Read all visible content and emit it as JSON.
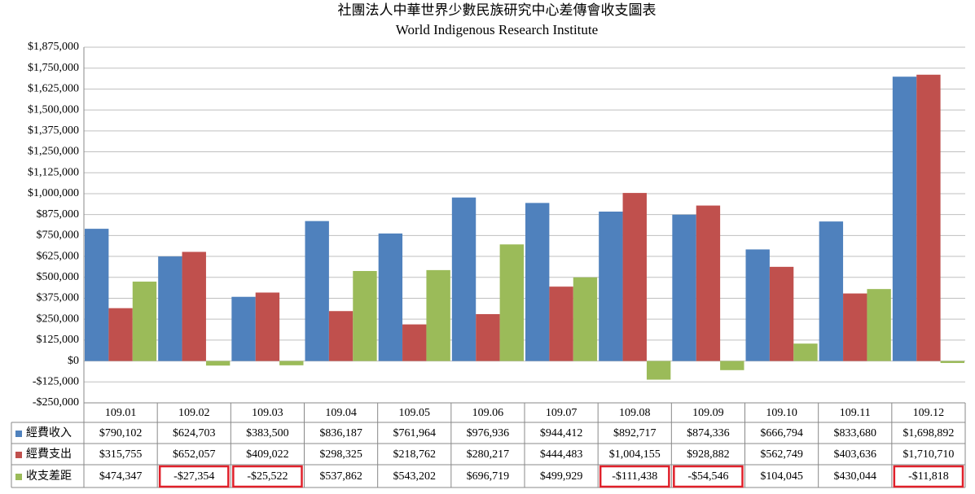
{
  "chart_data": {
    "type": "bar",
    "title": "社團法人中華世界少數民族研究中心差傳會收支圖表",
    "subtitle": "World Indigenous Research Institute",
    "categories": [
      "109.01",
      "109.02",
      "109.03",
      "109.04",
      "109.05",
      "109.06",
      "109.07",
      "109.08",
      "109.09",
      "109.10",
      "109.11",
      "109.12"
    ],
    "series": [
      {
        "name": "經費收入",
        "color": "#4f81bd",
        "values": [
          790102,
          624703,
          383500,
          836187,
          761964,
          976936,
          944412,
          892717,
          874336,
          666794,
          833680,
          1698892
        ],
        "value_labels": [
          "$790,102",
          "$624,703",
          "$383,500",
          "$836,187",
          "$761,964",
          "$976,936",
          "$944,412",
          "$892,717",
          "$874,336",
          "$666,794",
          "$833,680",
          "$1,698,892"
        ]
      },
      {
        "name": "經費支出",
        "color": "#c0504d",
        "values": [
          315755,
          652057,
          409022,
          298325,
          218762,
          280217,
          444483,
          1004155,
          928882,
          562749,
          403636,
          1710710
        ],
        "value_labels": [
          "$315,755",
          "$652,057",
          "$409,022",
          "$298,325",
          "$218,762",
          "$280,217",
          "$444,483",
          "$1,004,155",
          "$928,882",
          "$562,749",
          "$403,636",
          "$1,710,710"
        ]
      },
      {
        "name": "收支差距",
        "color": "#9bbb59",
        "values": [
          474347,
          -27354,
          -25522,
          537862,
          543202,
          696719,
          499929,
          -111438,
          -54546,
          104045,
          430044,
          -11818
        ],
        "value_labels": [
          "$474,347",
          "-$27,354",
          "-$25,522",
          "$537,862",
          "$543,202",
          "$696,719",
          "$499,929",
          "-$111,438",
          "-$54,546",
          "$104,045",
          "$430,044",
          "-$11,818"
        ]
      }
    ],
    "ylim": [
      -250000,
      1875000
    ],
    "yticks": [
      {
        "value": -250000,
        "label": "-$250,000"
      },
      {
        "value": -125000,
        "label": "-$125,000"
      },
      {
        "value": 0,
        "label": "$0"
      },
      {
        "value": 125000,
        "label": "$125,000"
      },
      {
        "value": 250000,
        "label": "$250,000"
      },
      {
        "value": 375000,
        "label": "$375,000"
      },
      {
        "value": 500000,
        "label": "$500,000"
      },
      {
        "value": 625000,
        "label": "$625,000"
      },
      {
        "value": 750000,
        "label": "$750,000"
      },
      {
        "value": 875000,
        "label": "$875,000"
      },
      {
        "value": 1000000,
        "label": "$1,000,000"
      },
      {
        "value": 1125000,
        "label": "$1,125,000"
      },
      {
        "value": 1250000,
        "label": "$1,250,000"
      },
      {
        "value": 1375000,
        "label": "$1,375,000"
      },
      {
        "value": 1500000,
        "label": "$1,500,000"
      },
      {
        "value": 1625000,
        "label": "$1,625,000"
      },
      {
        "value": 1750000,
        "label": "$1,750,000"
      },
      {
        "value": 1875000,
        "label": "$1,875,000"
      }
    ],
    "grid": true
  }
}
